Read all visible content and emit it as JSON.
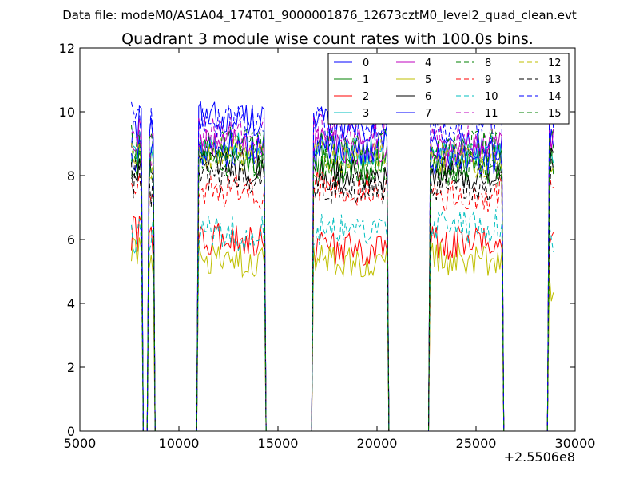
{
  "figure": {
    "suptitle": "Data file: modeM0/AS1A04_174T01_9000001876_12673cztM0_level2_quad_clean.evt"
  },
  "chart_data": {
    "type": "line",
    "title": "Quadrant 3 module wise count rates with 100.0s bins.",
    "xlabel": "",
    "ylabel": "",
    "x_offset_label": "+2.5506e8",
    "xlim": [
      5000,
      30000
    ],
    "ylim": [
      0,
      12
    ],
    "x_ticks": [
      5000,
      10000,
      15000,
      20000,
      25000,
      30000
    ],
    "y_ticks": [
      0,
      2,
      4,
      6,
      8,
      10,
      12
    ],
    "grid": false,
    "legend_position": "top-right",
    "legend_columns": 4,
    "bin_seconds": 100,
    "segments": [
      {
        "start": 7600,
        "end": 8100
      },
      {
        "start": 8500,
        "end": 8700
      },
      {
        "start": 11000,
        "end": 14300
      },
      {
        "start": 16800,
        "end": 20500
      },
      {
        "start": 22700,
        "end": 26300
      },
      {
        "start": 28700,
        "end": 28900
      }
    ],
    "series": [
      {
        "name": "0",
        "color": "#0000ff",
        "dashed": false,
        "levels": [
          9.5,
          9.2,
          9.8,
          9.6,
          8.9,
          9.8
        ]
      },
      {
        "name": "1",
        "color": "#008000",
        "dashed": false,
        "levels": [
          8.5,
          8.3,
          8.6,
          8.4,
          8.3,
          8.6
        ]
      },
      {
        "name": "2",
        "color": "#ff0000",
        "dashed": false,
        "levels": [
          6.1,
          6.0,
          6.0,
          5.7,
          5.9,
          6.0
        ]
      },
      {
        "name": "3",
        "color": "#00bfbf",
        "dashed": false,
        "levels": [
          8.8,
          8.6,
          8.9,
          8.8,
          8.7,
          8.8
        ]
      },
      {
        "name": "4",
        "color": "#bf00bf",
        "dashed": false,
        "levels": [
          9.2,
          9.0,
          9.0,
          8.9,
          8.8,
          9.1
        ]
      },
      {
        "name": "5",
        "color": "#bfbf00",
        "dashed": false,
        "levels": [
          5.5,
          5.4,
          5.3,
          5.3,
          5.4,
          4.6
        ]
      },
      {
        "name": "6",
        "color": "#000000",
        "dashed": false,
        "levels": [
          8.0,
          8.1,
          8.3,
          8.0,
          8.1,
          8.2
        ]
      },
      {
        "name": "7",
        "color": "#0000ff",
        "dashed": false,
        "levels": [
          8.7,
          8.8,
          8.8,
          8.8,
          8.6,
          9.0
        ]
      },
      {
        "name": "8",
        "color": "#008000",
        "dashed": true,
        "levels": [
          8.3,
          8.2,
          8.4,
          8.1,
          8.2,
          8.3
        ]
      },
      {
        "name": "9",
        "color": "#ff0000",
        "dashed": true,
        "levels": [
          7.6,
          7.5,
          7.5,
          7.6,
          7.4,
          7.6
        ]
      },
      {
        "name": "10",
        "color": "#00bfbf",
        "dashed": true,
        "levels": [
          6.2,
          6.3,
          6.2,
          6.3,
          6.4,
          6.2
        ]
      },
      {
        "name": "11",
        "color": "#bf00bf",
        "dashed": true,
        "levels": [
          9.0,
          8.8,
          9.3,
          9.4,
          9.1,
          9.2
        ]
      },
      {
        "name": "12",
        "color": "#bfbf00",
        "dashed": true,
        "levels": [
          8.6,
          8.5,
          8.7,
          8.6,
          8.5,
          8.7
        ]
      },
      {
        "name": "13",
        "color": "#000000",
        "dashed": true,
        "levels": [
          7.9,
          7.7,
          8.0,
          7.6,
          7.7,
          7.9
        ]
      },
      {
        "name": "14",
        "color": "#0000ff",
        "dashed": true,
        "levels": [
          9.7,
          9.5,
          9.7,
          9.6,
          9.6,
          9.8
        ]
      },
      {
        "name": "15",
        "color": "#008000",
        "dashed": true,
        "levels": [
          8.9,
          8.8,
          9.0,
          8.9,
          8.9,
          9.0
        ]
      }
    ]
  }
}
